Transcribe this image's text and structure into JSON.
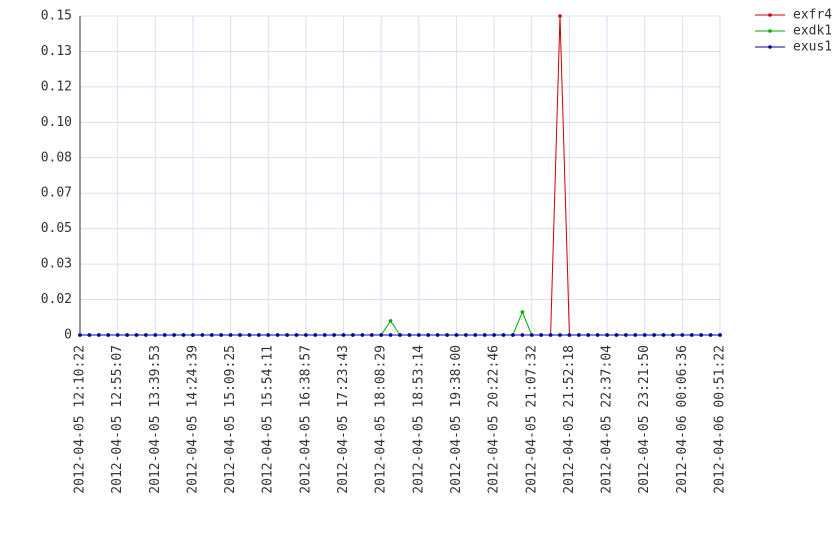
{
  "chart_data": {
    "type": "line",
    "categories": [
      "2012-04-05 12:10:22",
      null,
      null,
      null,
      "2012-04-05 12:55:07",
      null,
      null,
      null,
      "2012-04-05 13:39:53",
      null,
      null,
      null,
      "2012-04-05 14:24:39",
      null,
      null,
      null,
      "2012-04-05 15:09:25",
      null,
      null,
      null,
      "2012-04-05 15:54:11",
      null,
      null,
      null,
      "2012-04-05 16:38:57",
      null,
      null,
      null,
      "2012-04-05 17:23:43",
      null,
      null,
      null,
      "2012-04-05 18:08:29",
      null,
      null,
      null,
      "2012-04-05 18:53:14",
      null,
      null,
      null,
      "2012-04-05 19:38:00",
      null,
      null,
      null,
      "2012-04-05 20:22:46",
      null,
      null,
      null,
      "2012-04-05 21:07:32",
      null,
      null,
      null,
      "2012-04-05 21:52:18",
      null,
      null,
      null,
      "2012-04-05 22:37:04",
      null,
      null,
      null,
      "2012-04-05 23:21:50",
      null,
      null,
      null,
      "2012-04-06 00:06:36",
      null,
      null,
      null,
      "2012-04-06 00:51:22"
    ],
    "series": [
      {
        "name": "exfr4",
        "color": "#cc0000",
        "values": [
          0,
          0,
          0,
          0,
          0,
          0,
          0,
          0,
          0,
          0,
          0,
          0,
          0,
          0,
          0,
          0,
          0,
          0,
          0,
          0,
          0,
          0,
          0,
          0,
          0,
          0,
          0,
          0,
          0,
          0,
          0,
          0,
          0,
          0,
          0,
          0,
          0,
          0,
          0,
          0,
          0,
          0,
          0,
          0,
          0,
          0,
          0,
          0,
          0,
          0,
          0,
          0.15,
          0,
          0,
          0,
          0,
          0,
          0,
          0,
          0,
          0,
          0,
          0,
          0,
          0,
          0,
          0,
          0,
          0
        ]
      },
      {
        "name": "exdk1",
        "color": "#00aa00",
        "values": [
          0,
          0,
          0,
          0,
          0,
          0,
          0,
          0,
          0,
          0,
          0,
          0,
          0,
          0,
          0,
          0,
          0,
          0,
          0,
          0,
          0,
          0,
          0,
          0,
          0,
          0,
          0,
          0,
          0,
          0,
          0,
          0,
          0,
          0.0066,
          0,
          0,
          0,
          0,
          0,
          0,
          0,
          0,
          0,
          0,
          0,
          0,
          0,
          0.0108,
          0,
          0,
          0,
          0,
          0,
          0,
          0,
          0,
          0,
          0,
          0,
          0,
          0,
          0,
          0,
          0,
          0,
          0,
          0,
          0,
          0
        ]
      },
      {
        "name": "exus1",
        "color": "#0000aa",
        "values": [
          0,
          0,
          0,
          0,
          0,
          0,
          0,
          0,
          0,
          0,
          0,
          0,
          0,
          0,
          0,
          0,
          0,
          0,
          0,
          0,
          0,
          0,
          0,
          0,
          0,
          0,
          0,
          0,
          0,
          0,
          0,
          0,
          0,
          0,
          0,
          0,
          0,
          0,
          0,
          0,
          0,
          0,
          0,
          0,
          0,
          0,
          0,
          0,
          0,
          0,
          0,
          0,
          0,
          0,
          0,
          0,
          0,
          0,
          0,
          0,
          0,
          0,
          0,
          0,
          0,
          0,
          0,
          0,
          0
        ]
      }
    ],
    "ylim": [
      0,
      0.15
    ],
    "yticks": [
      0,
      {
        "value": 0.016667,
        "label": "0.02"
      },
      {
        "value": 0.033333,
        "label": "0.03"
      },
      {
        "value": 0.05,
        "label": "0.05"
      },
      {
        "value": 0.066667,
        "label": "0.07"
      },
      {
        "value": 0.083333,
        "label": "0.08"
      },
      {
        "value": 0.1,
        "label": "0.10"
      },
      {
        "value": 0.116667,
        "label": "0.12"
      },
      {
        "value": 0.133333,
        "label": "0.13"
      },
      0.15
    ],
    "grid": true,
    "legend": "top-right"
  }
}
